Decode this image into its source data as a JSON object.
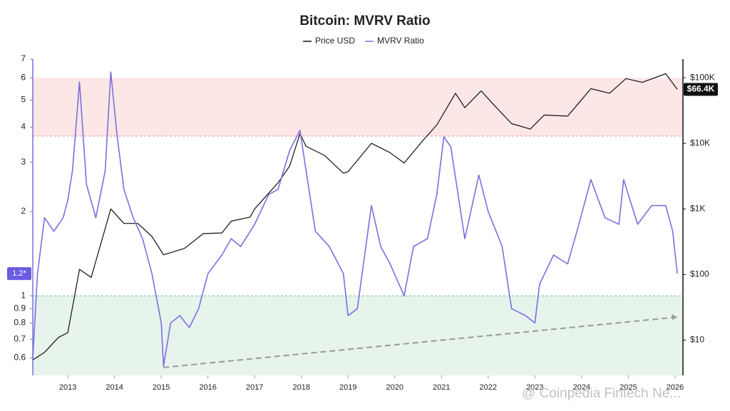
{
  "chart_data": {
    "type": "line",
    "title": "Bitcoin: MVRV Ratio",
    "x_series": "shared",
    "series": [
      {
        "name": "Price USD",
        "color": "#111111",
        "axis": "y2",
        "x": [
          2012.25,
          2012.5,
          2012.8,
          2013.0,
          2013.25,
          2013.5,
          2013.92,
          2014.2,
          2014.5,
          2014.8,
          2015.05,
          2015.5,
          2015.9,
          2016.3,
          2016.5,
          2016.9,
          2017.0,
          2017.5,
          2017.75,
          2017.97,
          2018.1,
          2018.5,
          2018.9,
          2019.0,
          2019.5,
          2019.9,
          2020.2,
          2020.6,
          2020.9,
          2021.3,
          2021.5,
          2021.85,
          2022.1,
          2022.5,
          2022.9,
          2023.2,
          2023.7,
          2023.95,
          2024.2,
          2024.6,
          2024.95,
          2025.3,
          2025.8,
          2026.05
        ],
        "values": [
          5,
          6.5,
          11,
          13,
          120,
          90,
          1000,
          600,
          600,
          380,
          200,
          250,
          420,
          430,
          650,
          750,
          1000,
          2500,
          4500,
          14000,
          9000,
          6500,
          3500,
          3700,
          10000,
          7200,
          5000,
          11000,
          19000,
          58000,
          35000,
          63000,
          40000,
          20000,
          16500,
          27000,
          26000,
          42000,
          68000,
          58000,
          97000,
          85000,
          115000,
          66400
        ]
      },
      {
        "name": "MVRV Ratio",
        "color": "#7b6fe0",
        "axis": "y",
        "x": [
          2012.25,
          2012.35,
          2012.5,
          2012.7,
          2012.9,
          2013.0,
          2013.1,
          2013.25,
          2013.4,
          2013.6,
          2013.8,
          2013.92,
          2014.05,
          2014.2,
          2014.4,
          2014.6,
          2014.8,
          2015.0,
          2015.05,
          2015.2,
          2015.4,
          2015.6,
          2015.8,
          2016.0,
          2016.3,
          2016.5,
          2016.7,
          2017.0,
          2017.3,
          2017.5,
          2017.75,
          2017.97,
          2018.1,
          2018.3,
          2018.6,
          2018.9,
          2019.0,
          2019.2,
          2019.5,
          2019.7,
          2019.9,
          2020.2,
          2020.4,
          2020.7,
          2020.9,
          2021.05,
          2021.2,
          2021.5,
          2021.8,
          2022.0,
          2022.3,
          2022.5,
          2022.8,
          2023.0,
          2023.1,
          2023.4,
          2023.7,
          2023.9,
          2024.2,
          2024.5,
          2024.8,
          2024.9,
          2025.2,
          2025.5,
          2025.8,
          2025.95,
          2026.05
        ],
        "values": [
          0.6,
          1.2,
          1.9,
          1.7,
          1.9,
          2.2,
          2.8,
          5.8,
          2.5,
          1.9,
          2.8,
          6.3,
          3.8,
          2.4,
          1.9,
          1.6,
          1.2,
          0.8,
          0.56,
          0.8,
          0.85,
          0.77,
          0.9,
          1.2,
          1.4,
          1.6,
          1.5,
          1.8,
          2.3,
          2.4,
          3.3,
          3.9,
          2.8,
          1.7,
          1.5,
          1.2,
          0.85,
          0.9,
          2.1,
          1.5,
          1.3,
          1.0,
          1.5,
          1.6,
          2.3,
          3.7,
          3.4,
          1.6,
          2.7,
          2.0,
          1.5,
          0.9,
          0.85,
          0.8,
          1.1,
          1.4,
          1.3,
          1.7,
          2.6,
          1.9,
          1.8,
          2.6,
          1.8,
          2.1,
          2.1,
          1.7,
          1.2
        ]
      }
    ],
    "xlim": [
      2012.25,
      2026.17
    ],
    "xticks": [
      2013,
      2014,
      2015,
      2016,
      2017,
      2018,
      2019,
      2020,
      2021,
      2022,
      2023,
      2024,
      2025,
      2026
    ],
    "ylim": [
      0.52,
      7
    ],
    "log_y": true,
    "yticks": [
      0.6,
      0.7,
      0.8,
      0.9,
      1,
      2,
      3,
      4,
      5,
      6,
      7
    ],
    "y2lim": [
      2.9,
      192000
    ],
    "log_y2": true,
    "y2ticks": [
      {
        "value": 10,
        "label": "$10"
      },
      {
        "value": 100,
        "label": "$100"
      },
      {
        "value": 1000,
        "label": "$1K"
      },
      {
        "value": 10000,
        "label": "$10K"
      },
      {
        "value": 100000,
        "label": "$100K"
      }
    ],
    "upper_band": [
      3.72,
      6
    ],
    "lower_band": [
      0.52,
      1
    ],
    "trend": {
      "x": [
        2015.05,
        2026.05
      ],
      "values": [
        0.555,
        0.84
      ]
    },
    "current_mvrv": {
      "value": 1.2,
      "label": "1.2*"
    },
    "current_price": {
      "value": 66400,
      "label": "$66.4K"
    },
    "watermark": "@ Coinpedia Fintech Ne..."
  }
}
